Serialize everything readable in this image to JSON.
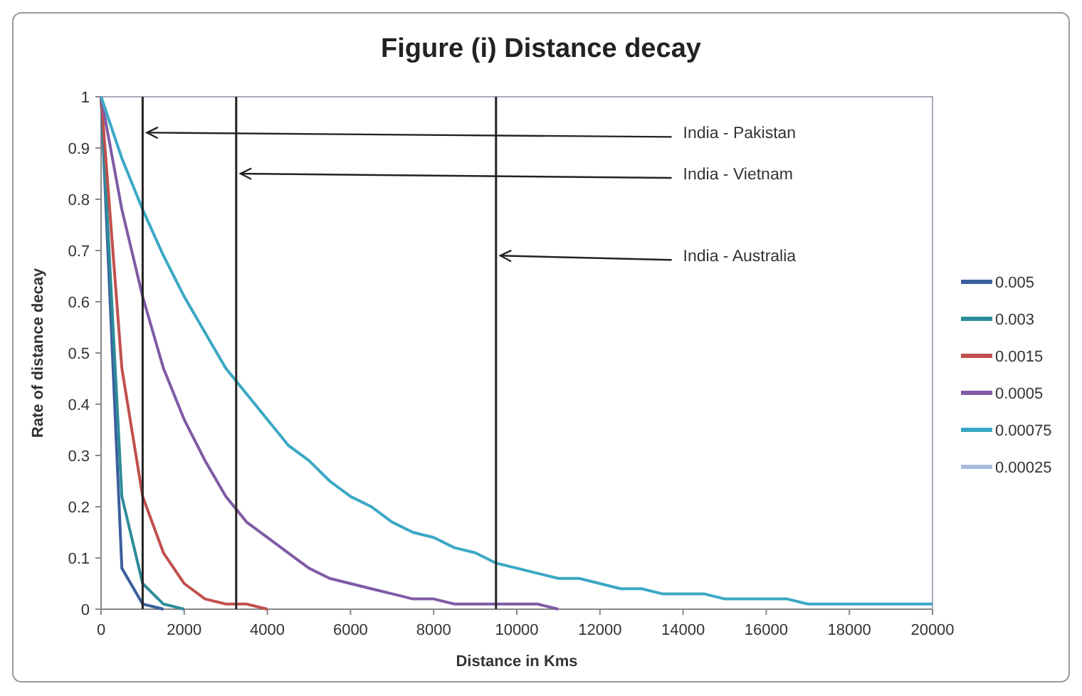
{
  "chart_data": {
    "type": "line",
    "title": "Figure (i) Distance decay",
    "xlabel": "Distance in Kms",
    "ylabel": "Rate of distance decay",
    "x": [
      0,
      500,
      1000,
      1500,
      2000,
      2500,
      3000,
      3500,
      4000,
      4500,
      5000,
      5500,
      6000,
      6500,
      7000,
      7500,
      8000,
      8500,
      9000,
      9500,
      10000,
      10500,
      11000,
      11500,
      12000,
      12500,
      13000,
      13500,
      14000,
      14500,
      15000,
      15500,
      16000,
      16500,
      17000,
      17500,
      18000,
      18500,
      19000,
      19500,
      20000
    ],
    "series": [
      {
        "name": "0.005",
        "color": "#3a5f9e",
        "x": [
          0,
          500,
          1000,
          1500
        ],
        "values": [
          1,
          0.08,
          0.01,
          0
        ]
      },
      {
        "name": "0.003",
        "color": "#2e8c99",
        "x": [
          0,
          500,
          1000,
          1500,
          2000
        ],
        "values": [
          1,
          0.22,
          0.05,
          0.01,
          0
        ]
      },
      {
        "name": "0.0015",
        "color": "#c0504d",
        "x": [
          0,
          500,
          1000,
          1500,
          2000,
          2500,
          3000,
          3500,
          4000
        ],
        "values": [
          1,
          0.47,
          0.22,
          0.11,
          0.05,
          0.02,
          0.01,
          0.01,
          0
        ]
      },
      {
        "name": "0.0005",
        "color": "#7f5ba6",
        "x": [
          0,
          500,
          1000,
          1500,
          2000,
          2500,
          3000,
          3500,
          4000,
          4500,
          5000,
          5500,
          6000,
          6500,
          7000,
          7500,
          8000,
          8500,
          9000,
          9500,
          10000,
          10500,
          11000
        ],
        "values": [
          1,
          0.78,
          0.61,
          0.47,
          0.37,
          0.29,
          0.22,
          0.17,
          0.14,
          0.11,
          0.08,
          0.06,
          0.05,
          0.04,
          0.03,
          0.02,
          0.02,
          0.01,
          0.01,
          0.01,
          0.01,
          0.01,
          0
        ]
      },
      {
        "name": "0.00075",
        "color": "#3ba8c4",
        "values": [
          1,
          0.88,
          0.78,
          0.69,
          0.61,
          0.54,
          0.47,
          0.42,
          0.37,
          0.32,
          0.29,
          0.25,
          0.22,
          0.2,
          0.17,
          0.15,
          0.14,
          0.12,
          0.11,
          0.09,
          0.08,
          0.07,
          0.06,
          0.06,
          0.05,
          0.04,
          0.04,
          0.03,
          0.03,
          0.03,
          0.02,
          0.02,
          0.02,
          0.02,
          0.01,
          0.01,
          0.01,
          0.01,
          0.01,
          0.01,
          0.01
        ]
      },
      {
        "name": "0.00025",
        "color": "#a9bcdc",
        "values": [
          null,
          null,
          null,
          null,
          null,
          null,
          null,
          null,
          null,
          null,
          null,
          null,
          null,
          null,
          null,
          null,
          null,
          null,
          null,
          null,
          null,
          null,
          null,
          null,
          null,
          null,
          null,
          null,
          null,
          null,
          null,
          null,
          null,
          null,
          null,
          null,
          null,
          null,
          null,
          null,
          null
        ]
      }
    ],
    "xlim": [
      0,
      20000
    ],
    "xticks": [
      0,
      2000,
      4000,
      6000,
      8000,
      10000,
      12000,
      14000,
      16000,
      18000,
      20000
    ],
    "ylim": [
      0,
      1
    ],
    "yticks": [
      0,
      0.1,
      0.2,
      0.3,
      0.4,
      0.5,
      0.6,
      0.7,
      0.8,
      0.9,
      1
    ],
    "ref_lines": [
      {
        "axis": "x",
        "value": 1000,
        "label": "India - Pakistan",
        "color": "#222222"
      },
      {
        "axis": "x",
        "value": 3250,
        "label": "India  - Vietnam",
        "color": "#222222"
      },
      {
        "axis": "x",
        "value": 9500,
        "label": "India - Australia",
        "color": "#222222"
      }
    ],
    "legend": "right",
    "grid": false,
    "marker": "none",
    "line_style": "solid"
  }
}
